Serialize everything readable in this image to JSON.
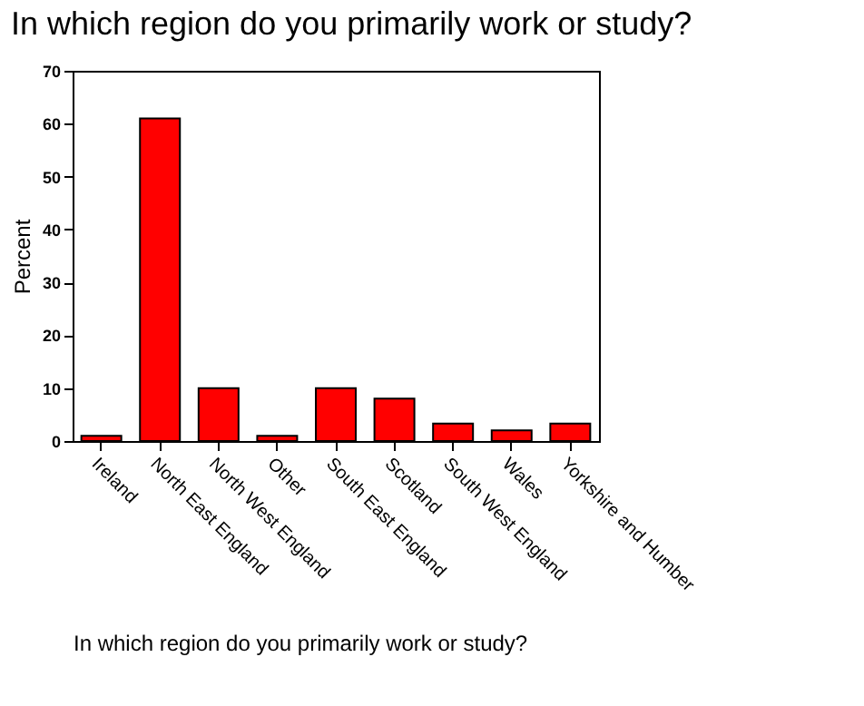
{
  "chart_data": {
    "type": "bar",
    "title": "In which region do you primarily work or study?",
    "xlabel": "In which region do you primarily work or study?",
    "ylabel": "Percent",
    "categories": [
      "Ireland",
      "North East England",
      "North West England",
      "Other",
      "South East England",
      "Scotland",
      "South West England",
      "Wales",
      "Yorkshire and Humber"
    ],
    "values": [
      1,
      61,
      10,
      1,
      10,
      8,
      3.3,
      2,
      3.3
    ],
    "color": "#ff0000",
    "ylim": [
      0,
      70
    ],
    "yticks": [
      0,
      10,
      20,
      30,
      40,
      50,
      60,
      70
    ],
    "grid": false
  }
}
